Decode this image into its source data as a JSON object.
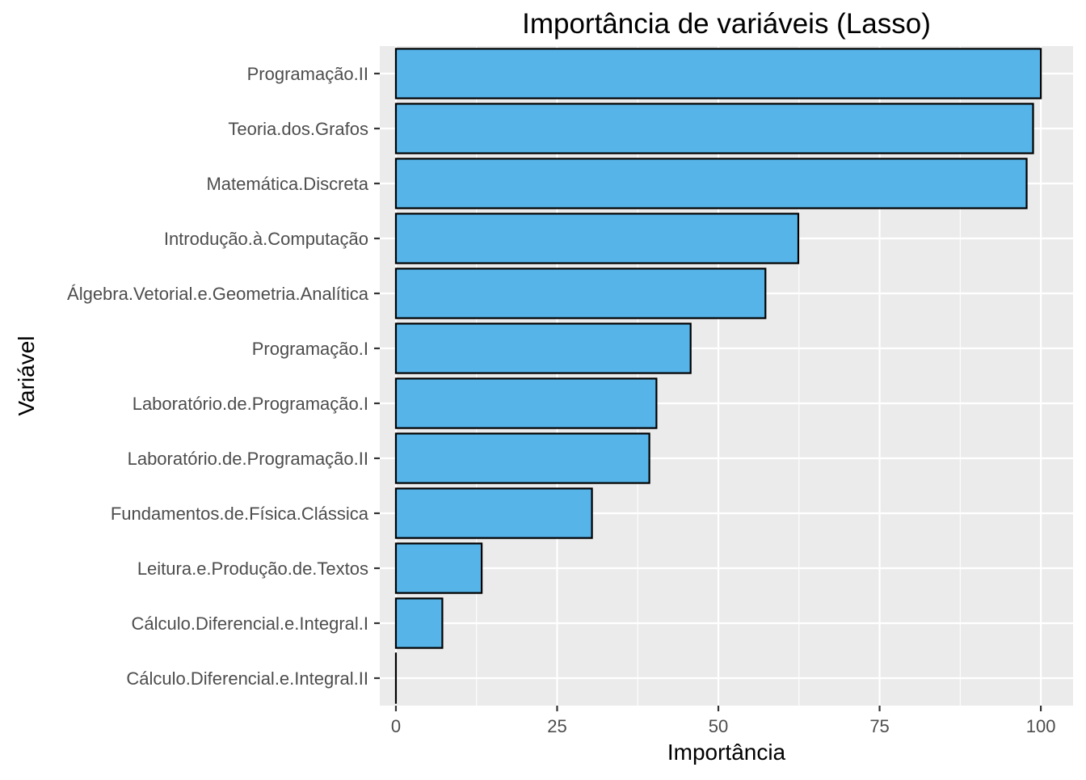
{
  "chart_data": {
    "type": "bar",
    "orientation": "horizontal",
    "title": "Importância de variáveis (Lasso)",
    "xlabel": "Importância",
    "ylabel": "Variável",
    "categories": [
      "Programação.II",
      "Teoria.dos.Grafos",
      "Matemática.Discreta",
      "Introdução.à.Computação",
      "Álgebra.Vetorial.e.Geometria.Analítica",
      "Programação.I",
      "Laboratório.de.Programação.I",
      "Laboratório.de.Programação.II",
      "Fundamentos.de.Física.Clássica",
      "Leitura.e.Produção.de.Textos",
      "Cálculo.Diferencial.e.Integral.I",
      "Cálculo.Diferencial.e.Integral.II"
    ],
    "values": [
      100,
      98.8,
      97.8,
      62.4,
      57.3,
      45.7,
      40.4,
      39.3,
      30.4,
      13.3,
      7.2,
      0
    ],
    "xlim": [
      -2.5,
      105
    ],
    "xticks": [
      0,
      25,
      50,
      75,
      100
    ],
    "xtick_labels": [
      "0",
      "25",
      "50",
      "75",
      "100"
    ],
    "bar_color": "#56B4E9",
    "bar_edge_color": "#000000",
    "panel_color": "#EBEBEB",
    "grid": true,
    "legend": "none"
  }
}
